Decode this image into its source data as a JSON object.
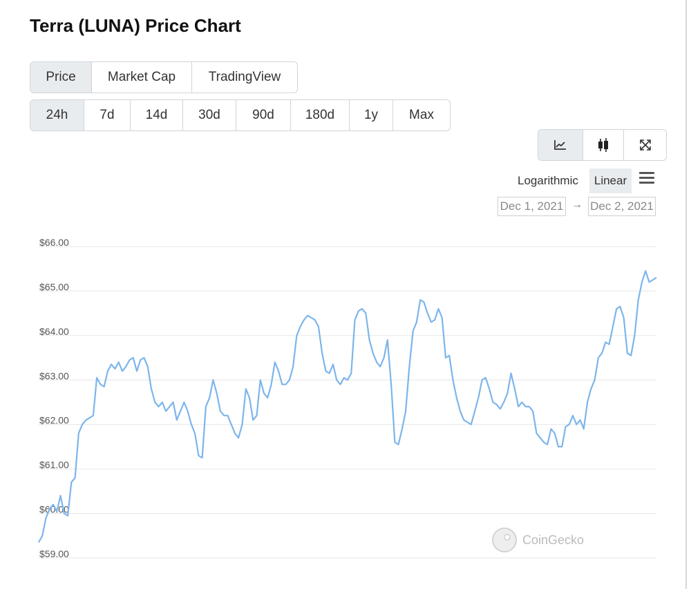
{
  "page": {
    "title": "Terra (LUNA) Price Chart"
  },
  "tabs": [
    "Price",
    "Market Cap",
    "TradingView"
  ],
  "ranges": [
    "24h",
    "7d",
    "14d",
    "30d",
    "90d",
    "180d",
    "1y",
    "Max"
  ],
  "active_tab": "Price",
  "active_range": "24h",
  "chart_type_icons": [
    "line-chart-icon",
    "candlestick-icon",
    "expand-icon"
  ],
  "scale": {
    "log_label": "Logarithmic",
    "linear_label": "Linear",
    "active": "Linear"
  },
  "date_range": {
    "from": "Dec 1, 2021",
    "arrow": "→",
    "to": "Dec 2, 2021"
  },
  "watermark": "CoinGecko",
  "colors": {
    "line": "#7cb5ec",
    "grid": "#e6e6e6"
  },
  "chart_data": {
    "type": "line",
    "title": "",
    "xlabel": "",
    "ylabel": "",
    "ylim": [
      59,
      66
    ],
    "y_tick_labels": [
      "$66.00",
      "$65.00",
      "$64.00",
      "$63.00",
      "$62.00",
      "$61.00",
      "$60.00",
      "$59.00"
    ],
    "y_ticks": [
      66,
      65,
      64,
      63,
      62,
      61,
      60,
      59
    ],
    "grid": true,
    "legend": "none",
    "series": [
      {
        "values": [
          59.35,
          59.5,
          59.9,
          60.1,
          60.2,
          60.05,
          60.4,
          60.0,
          59.95,
          60.7,
          60.8,
          61.8,
          62.0,
          62.1,
          62.15,
          62.2,
          63.05,
          62.9,
          62.85,
          63.2,
          63.35,
          63.25,
          63.4,
          63.2,
          63.3,
          63.45,
          63.5,
          63.2,
          63.45,
          63.5,
          63.3,
          62.8,
          62.5,
          62.4,
          62.5,
          62.3,
          62.4,
          62.5,
          62.1,
          62.3,
          62.5,
          62.3,
          62.0,
          61.8,
          61.3,
          61.25,
          62.4,
          62.6,
          63.0,
          62.7,
          62.3,
          62.2,
          62.2,
          62.0,
          61.8,
          61.7,
          62.0,
          62.8,
          62.6,
          62.1,
          62.2,
          63.0,
          62.7,
          62.6,
          62.9,
          63.4,
          63.2,
          62.9,
          62.9,
          63.0,
          63.3,
          64.0,
          64.2,
          64.35,
          64.45,
          64.4,
          64.35,
          64.2,
          63.6,
          63.2,
          63.15,
          63.35,
          63.0,
          62.9,
          63.05,
          63.0,
          63.15,
          64.35,
          64.55,
          64.6,
          64.5,
          63.9,
          63.6,
          63.4,
          63.3,
          63.5,
          63.9,
          62.9,
          61.6,
          61.55,
          61.9,
          62.3,
          63.3,
          64.1,
          64.3,
          64.8,
          64.75,
          64.5,
          64.3,
          64.35,
          64.6,
          64.4,
          63.5,
          63.55,
          63.0,
          62.6,
          62.3,
          62.1,
          62.05,
          62.0,
          62.3,
          62.6,
          63.0,
          63.05,
          62.8,
          62.5,
          62.45,
          62.35,
          62.5,
          62.7,
          63.15,
          62.8,
          62.4,
          62.5,
          62.4,
          62.4,
          62.3,
          61.8,
          61.7,
          61.6,
          61.55,
          61.9,
          61.8,
          61.5,
          61.5,
          61.95,
          62.0,
          62.2,
          62.0,
          62.1,
          61.9,
          62.5,
          62.8,
          63.0,
          63.5,
          63.6,
          63.85,
          63.8,
          64.2,
          64.6,
          64.65,
          64.4,
          63.6,
          63.55,
          64.0,
          64.8,
          65.2,
          65.45,
          65.2,
          65.25,
          65.3
        ]
      }
    ]
  }
}
